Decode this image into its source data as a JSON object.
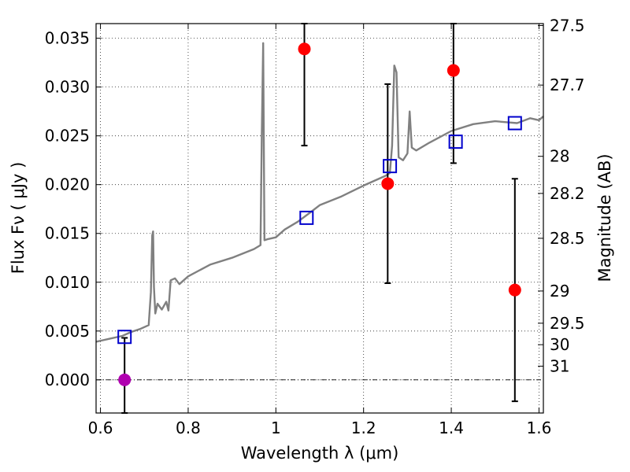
{
  "chart_data": {
    "type": "line",
    "title": "",
    "xlabel": "Wavelength  λ (μm)",
    "ylabel": "Flux  Fν  ( μJy )",
    "ylabel2": "Magnitude (AB)",
    "xlim": [
      0.59,
      1.61
    ],
    "ylim": [
      -0.0034,
      0.0365
    ],
    "x_ticks": [
      0.6,
      0.8,
      1.0,
      1.2,
      1.4,
      1.6
    ],
    "x_tick_labels": [
      "0.6",
      "0.8",
      "1",
      "1.2",
      "1.4",
      "1.6"
    ],
    "y_ticks": [
      0.0,
      0.005,
      0.01,
      0.015,
      0.02,
      0.025,
      0.03,
      0.035
    ],
    "y_tick_labels": [
      "0.000",
      "0.005",
      "0.010",
      "0.015",
      "0.020",
      "0.025",
      "0.030",
      "0.035"
    ],
    "mag_ticks": [
      {
        "label": "27.5",
        "flux": 0.0363
      },
      {
        "label": "27.7",
        "flux": 0.0302
      },
      {
        "label": "28",
        "flux": 0.0229
      },
      {
        "label": "28.2",
        "flux": 0.0191
      },
      {
        "label": "28.5",
        "flux": 0.0145
      },
      {
        "label": "29",
        "flux": 0.0091
      },
      {
        "label": "29.5",
        "flux": 0.0058
      },
      {
        "label": "30",
        "flux": 0.0036
      },
      {
        "label": "31",
        "flux": 0.0014
      }
    ],
    "grid": true,
    "zero_line": 0.0,
    "colors": {
      "model": "#808080",
      "photometry": "#ff0000",
      "nondetection": "#b000b0",
      "model_bands": "#0000cc",
      "errorbars": "#000000"
    },
    "series": [
      {
        "kind": "line",
        "x": [
          0.59,
          0.62,
          0.65,
          0.67,
          0.69,
          0.71,
          0.715,
          0.718,
          0.72,
          0.722,
          0.725,
          0.73,
          0.74,
          0.75,
          0.755,
          0.76,
          0.77,
          0.78,
          0.8,
          0.85,
          0.9,
          0.95,
          0.965,
          0.968,
          0.971,
          0.974,
          0.98,
          1.0,
          1.02,
          1.05,
          1.08,
          1.1,
          1.15,
          1.2,
          1.25,
          1.26,
          1.265,
          1.27,
          1.275,
          1.28,
          1.29,
          1.3,
          1.305,
          1.31,
          1.32,
          1.35,
          1.4,
          1.45,
          1.5,
          1.55,
          1.58,
          1.6,
          1.61
        ],
        "y": [
          0.0039,
          0.0042,
          0.0045,
          0.0049,
          0.0052,
          0.0056,
          0.009,
          0.0148,
          0.0152,
          0.0095,
          0.0068,
          0.0078,
          0.0072,
          0.008,
          0.0071,
          0.0102,
          0.0104,
          0.0098,
          0.0106,
          0.0118,
          0.0125,
          0.0134,
          0.0138,
          0.0255,
          0.0345,
          0.0143,
          0.0144,
          0.0146,
          0.0154,
          0.0162,
          0.0172,
          0.0179,
          0.0188,
          0.0199,
          0.0209,
          0.0212,
          0.024,
          0.0322,
          0.0315,
          0.0228,
          0.0225,
          0.0232,
          0.0275,
          0.0238,
          0.0235,
          0.0243,
          0.0255,
          0.0262,
          0.0265,
          0.0263,
          0.0268,
          0.0266,
          0.027
        ]
      },
      {
        "kind": "errorbar",
        "x": [
          1.065,
          1.255,
          1.405,
          1.545
        ],
        "y": [
          0.0339,
          0.0201,
          0.0317,
          0.0092
        ],
        "yerr_low": [
          0.024,
          0.0099,
          0.0222,
          -0.0022
        ],
        "yerr_high": [
          0.0365,
          0.0303,
          0.0365,
          0.0206
        ]
      },
      {
        "kind": "nondetection",
        "x": [
          0.655
        ],
        "y": [
          0.0
        ],
        "yerr_low": [
          -0.0034
        ],
        "yerr_high": [
          0.0043
        ]
      },
      {
        "kind": "model-bands",
        "x": [
          0.655,
          1.07,
          1.26,
          1.41,
          1.545
        ],
        "y": [
          0.0044,
          0.0166,
          0.0219,
          0.0244,
          0.0263
        ]
      }
    ]
  }
}
